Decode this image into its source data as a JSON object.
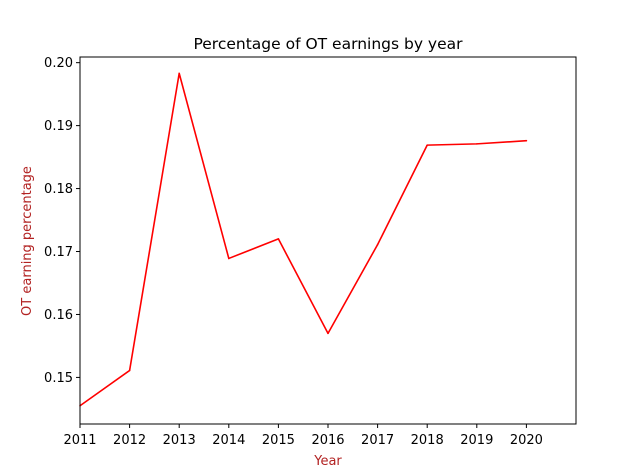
{
  "chart_data": {
    "type": "line",
    "title": "Percentage of OT earnings by year",
    "xlabel": "Year",
    "ylabel": "OT earning percentage",
    "x": [
      2011,
      2012,
      2013,
      2014,
      2015,
      2016,
      2017,
      2018,
      2019,
      2020
    ],
    "series": [
      {
        "values": [
          0.1455,
          0.1511,
          0.1983,
          0.1689,
          0.172,
          0.157,
          0.1711,
          0.1869,
          0.1871,
          0.1876
        ],
        "color": "#ff0000"
      }
    ],
    "xlim": [
      2011,
      2021
    ],
    "ylim": [
      0.1426,
      0.2009
    ],
    "xticks": [
      "2011",
      "2012",
      "2013",
      "2014",
      "2015",
      "2016",
      "2017",
      "2018",
      "2019",
      "2020"
    ],
    "yticks": [
      "0.15",
      "0.16",
      "0.17",
      "0.18",
      "0.19",
      "0.20"
    ],
    "label_color": "#b22222",
    "grid": false,
    "legend": "none"
  }
}
